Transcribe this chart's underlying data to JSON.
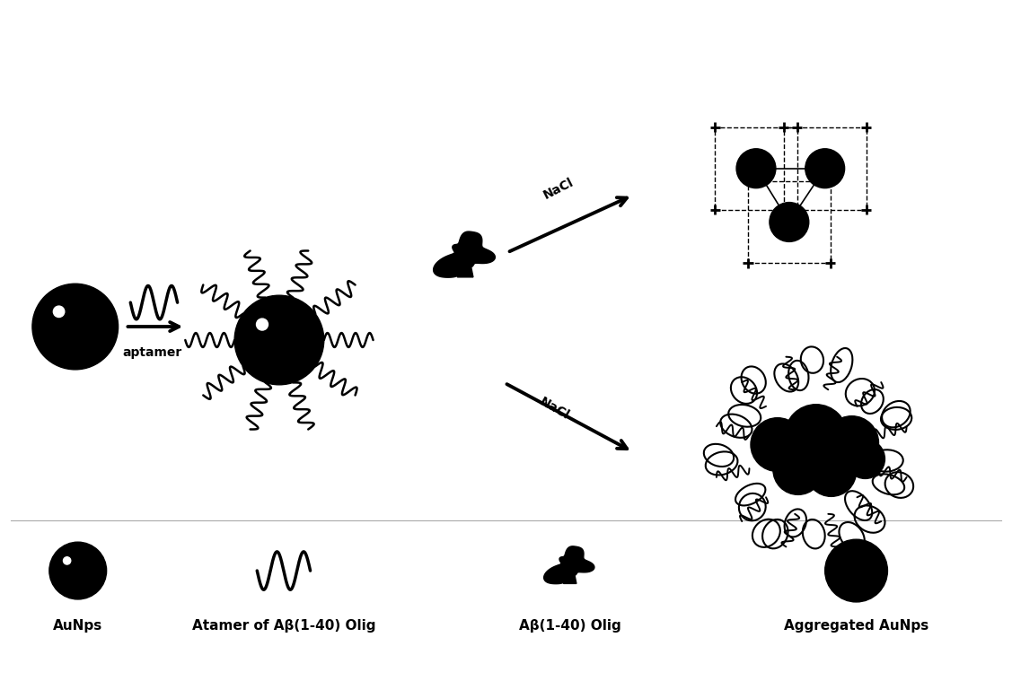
{
  "bg_color": "#ffffff",
  "ink_color": "#000000",
  "fig_width": 11.27,
  "fig_height": 7.59,
  "legend_labels": [
    "AuNps",
    "Atamer of Aβ(1-40) Olig",
    "Aβ(1-40) Olig",
    "Aggregated AuNps"
  ],
  "arrow_label_aptamer": "aptamer",
  "arrow_label_nacl1": "NaCl",
  "arrow_label_nacl2": "NaCl",
  "font_size_legend": 11,
  "font_size_arrow": 10
}
